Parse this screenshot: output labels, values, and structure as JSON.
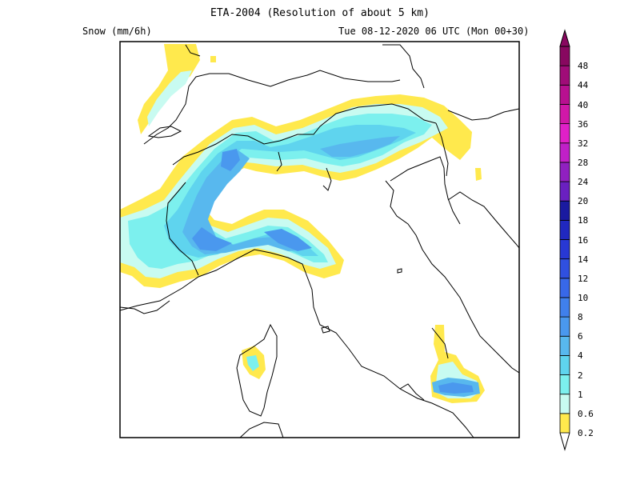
{
  "header": {
    "title": "ETA-2004 (Resolution of about 5 km)",
    "variable": "Snow (mm/6h)",
    "valid_time": "Tue 08-12-2020 06 UTC (Mon 00+30)"
  },
  "colorbar": {
    "levels": [
      "0.2",
      "0.6",
      "1",
      "2",
      "4",
      "6",
      "8",
      "10",
      "12",
      "14",
      "16",
      "18",
      "20",
      "24",
      "28",
      "32",
      "36",
      "40",
      "44",
      "48"
    ],
    "colors": [
      "#ffe94d",
      "#c8fbf1",
      "#7cf0ee",
      "#5fd4ee",
      "#58b8ee",
      "#4a98ee",
      "#4080ec",
      "#3868e8",
      "#3050e0",
      "#2838d4",
      "#2028c0",
      "#1a1aa0",
      "#6a20c0",
      "#9020c0",
      "#c020c8",
      "#e020c8",
      "#d018a8",
      "#b81090",
      "#a00c78",
      "#880860"
    ]
  },
  "map": {
    "colors": {
      "frame": "#000000",
      "coast": "#000000",
      "snow_light": "#ffe94d",
      "snow_lt1": "#c8fbf1",
      "snow_1_2": "#7cf0ee",
      "snow_2_4": "#5fd4ee",
      "snow_4_6": "#58b8ee",
      "snow_6_8": "#4a98ee"
    }
  }
}
